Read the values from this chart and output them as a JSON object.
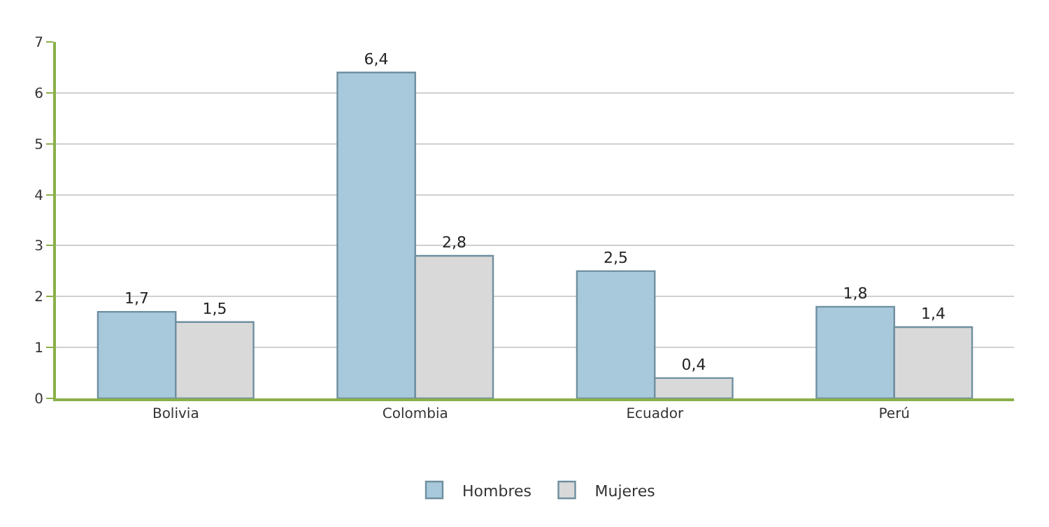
{
  "chart_data": {
    "type": "bar",
    "categories": [
      "Bolivia",
      "Colombia",
      "Ecuador",
      "Perú"
    ],
    "series": [
      {
        "name": "Hombres",
        "color": "#a8c8db",
        "values": [
          1.7,
          6.4,
          2.5,
          1.8
        ],
        "value_labels": [
          "1,7",
          "6,4",
          "2,5",
          "1,8"
        ]
      },
      {
        "name": "Mujeres",
        "color": "#d9d9d9",
        "values": [
          1.5,
          2.8,
          0.4,
          1.4
        ],
        "value_labels": [
          "1,5",
          "2,8",
          "0,4",
          "1,4"
        ]
      }
    ],
    "ylim": [
      0,
      7
    ],
    "yticks": [
      0,
      1,
      2,
      3,
      4,
      5,
      6,
      7
    ],
    "grid": "y",
    "legend": "bottom"
  }
}
